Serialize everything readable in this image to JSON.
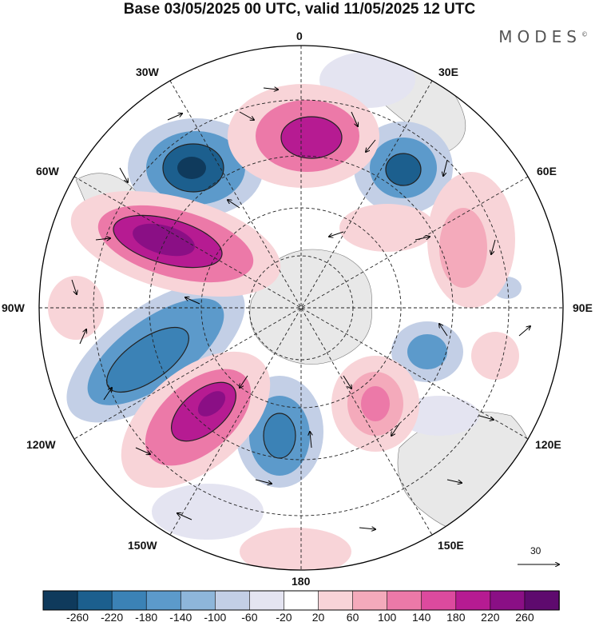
{
  "header": {
    "title": "Base 03/05/2025 00 UTC, valid 11/05/2025 12 UTC",
    "brand": "MODES"
  },
  "map": {
    "projection": "south-polar-stereographic",
    "longitude_labels": {
      "lon_0": "0",
      "lon_30e": "30E",
      "lon_60e": "60E",
      "lon_90e": "90E",
      "lon_120e": "120E",
      "lon_150e": "150E",
      "lon_180": "180",
      "lon_150w": "150W",
      "lon_120w": "120W",
      "lon_90w": "90W",
      "lon_60w": "60W",
      "lon_30w": "30W"
    },
    "vector_reference": "30",
    "land_color": "#e8e8e8"
  },
  "colorbar": {
    "ticks": [
      "-260",
      "-220",
      "-180",
      "-140",
      "-100",
      "-60",
      "-20",
      "20",
      "60",
      "100",
      "140",
      "180",
      "220",
      "260"
    ],
    "colors": [
      "#0f3a5c",
      "#1c5f8e",
      "#3b82b6",
      "#5c9acb",
      "#8eb6da",
      "#c3cfe6",
      "#e4e4f1",
      "#ffffff",
      "#f8d4d8",
      "#f4aabb",
      "#ec79a8",
      "#dc4a9e",
      "#b61b92",
      "#8a0f85",
      "#5e0a6e"
    ]
  }
}
